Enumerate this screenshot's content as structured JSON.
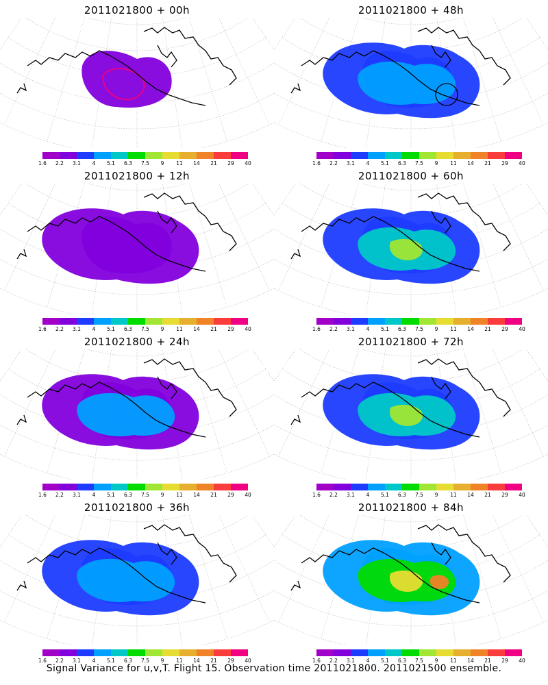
{
  "colors": [
    "#a000c8",
    "#8200dc",
    "#1e3cff",
    "#00a0ff",
    "#00c8c8",
    "#00dc00",
    "#a0e632",
    "#e6dc32",
    "#e6af2d",
    "#f08228",
    "#fa3c3c",
    "#f00082"
  ],
  "colorbar_labels": [
    "1.6",
    "2.2",
    "3.1",
    "4",
    "5.1",
    "6.3",
    "7.5",
    "9",
    "11",
    "14",
    "21",
    "29",
    "40"
  ],
  "panels": [
    {
      "title": "2011021800 + 00h",
      "intensity": 0
    },
    {
      "title": "2011021800 + 12h",
      "intensity": 1
    },
    {
      "title": "2011021800 + 24h",
      "intensity": 2
    },
    {
      "title": "2011021800 + 36h",
      "intensity": 3
    },
    {
      "title": "2011021800 + 48h",
      "intensity": 3
    },
    {
      "title": "2011021800 + 60h",
      "intensity": 4
    },
    {
      "title": "2011021800 + 72h",
      "intensity": 5
    },
    {
      "title": "2011021800 + 84h",
      "intensity": 6
    }
  ],
  "footer": "Signal Variance for u,v,T. Flight 15. Observation time 2011021800. 2011021500 ensemble."
}
